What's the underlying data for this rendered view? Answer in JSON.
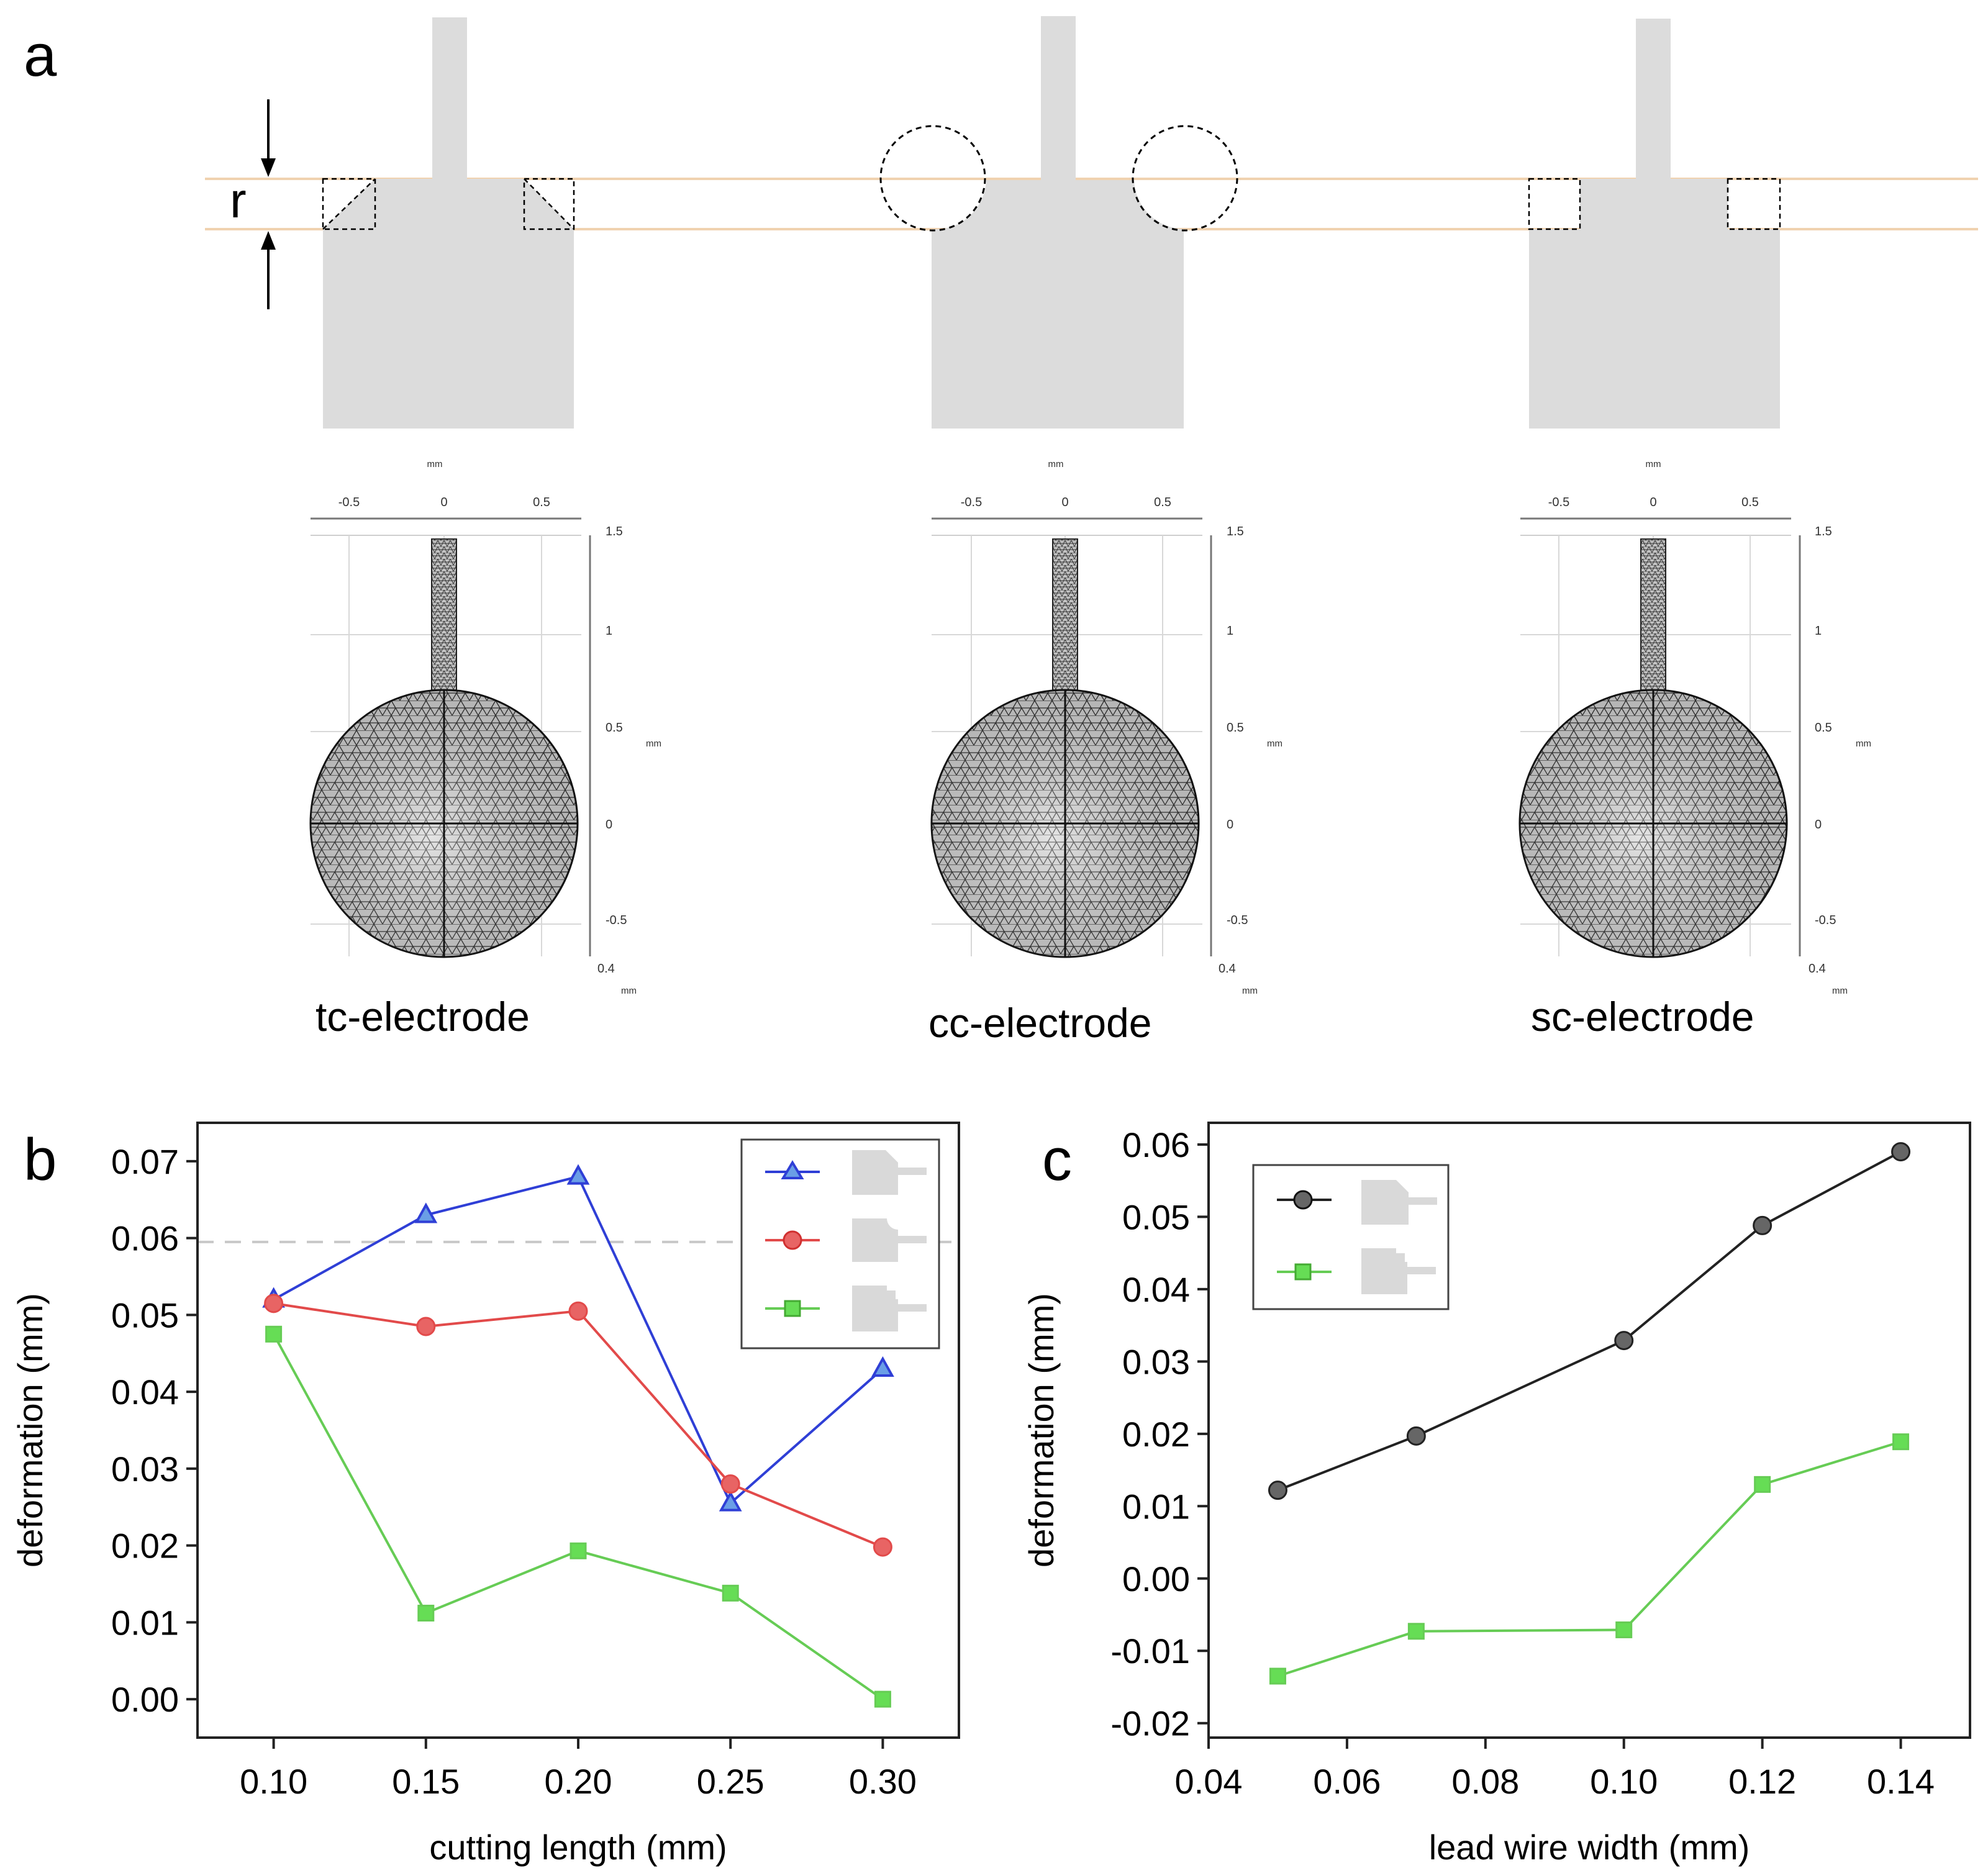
{
  "panel_a": {
    "label": "a",
    "dimension_label": "r",
    "unit_label": "mm",
    "x_ticks": [
      "-0.5",
      "0",
      "0.5"
    ],
    "y_ticks": [
      "1.5",
      "1",
      "0.5",
      "0",
      "-0.5"
    ],
    "scale_label": "0.4",
    "electrodes": [
      {
        "name": "tc-electrode",
        "cut": "triangular"
      },
      {
        "name": "cc-electrode",
        "cut": "circular"
      },
      {
        "name": "sc-electrode",
        "cut": "square"
      }
    ]
  },
  "chart_data": [
    {
      "panel": "b",
      "type": "line",
      "title": "",
      "xlabel": "cutting length (mm)",
      "ylabel": "deformation (mm)",
      "xlim": [
        0.075,
        0.325
      ],
      "ylim": [
        -0.005,
        0.075
      ],
      "x": [
        0.1,
        0.15,
        0.2,
        0.25,
        0.3
      ],
      "xticks": [
        "0.10",
        "0.15",
        "0.20",
        "0.25",
        "0.30"
      ],
      "yticks": [
        "0.00",
        "0.01",
        "0.02",
        "0.03",
        "0.04",
        "0.05",
        "0.06",
        "0.07"
      ],
      "reference_line": 0.0595,
      "legend_position": "top-right",
      "series": [
        {
          "name": "tc-electrode",
          "marker": "triangle",
          "color": "#2f3fd6",
          "fill": "#6a9ee6",
          "values": [
            0.052,
            0.063,
            0.068,
            0.0255,
            0.043
          ]
        },
        {
          "name": "cc-electrode",
          "marker": "circle",
          "color": "#e24a4a",
          "fill": "#e86464",
          "values": [
            0.0515,
            0.0485,
            0.0505,
            0.028,
            0.0198
          ]
        },
        {
          "name": "sc-electrode",
          "marker": "square",
          "color": "#66cc55",
          "fill": "#66dd55",
          "values": [
            0.0475,
            0.0112,
            0.0193,
            0.0138,
            0.0
          ]
        }
      ]
    },
    {
      "panel": "c",
      "type": "line",
      "title": "",
      "xlabel": "lead wire width (mm)",
      "ylabel": "deformation (mm)",
      "xlim": [
        0.04,
        0.15
      ],
      "ylim": [
        -0.022,
        0.063
      ],
      "x": [
        0.05,
        0.07,
        0.1,
        0.12,
        0.14
      ],
      "xticks": [
        "0.04",
        "0.06",
        "0.08",
        "0.10",
        "0.12",
        "0.14"
      ],
      "yticks": [
        "-0.02",
        "-0.01",
        "0.00",
        "0.01",
        "0.02",
        "0.03",
        "0.04",
        "0.05",
        "0.06"
      ],
      "legend_position": "top-left",
      "series": [
        {
          "name": "tc-electrode",
          "marker": "circle",
          "color": "#222222",
          "fill": "#666666",
          "values": [
            0.0122,
            0.0197,
            0.0329,
            0.0488,
            0.059
          ]
        },
        {
          "name": "sc-electrode",
          "marker": "square",
          "color": "#66cc55",
          "fill": "#66dd55",
          "values": [
            -0.0135,
            -0.0073,
            -0.0071,
            0.013,
            0.0189
          ]
        }
      ]
    }
  ]
}
